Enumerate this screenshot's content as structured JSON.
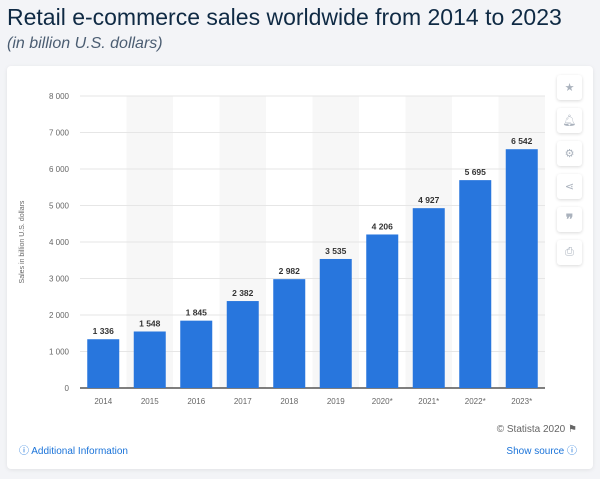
{
  "header": {
    "title": "Retail e-commerce sales worldwide from 2014 to 2023",
    "subtitle": "(in billion U.S. dollars)"
  },
  "footer": {
    "credit": "© Statista 2020",
    "additional_info": "Additional Information",
    "show_source": "Show source"
  },
  "sidebar_icons": [
    "star-icon",
    "bell-icon",
    "gear-icon",
    "share-icon",
    "quote-icon",
    "print-icon"
  ],
  "colors": {
    "bar": "#2876dd",
    "band": "#f7f7f7",
    "link": "#1a73d9"
  },
  "chart_data": {
    "type": "bar",
    "categories": [
      "2014",
      "2015",
      "2016",
      "2017",
      "2018",
      "2019",
      "2020*",
      "2021*",
      "2022*",
      "2023*"
    ],
    "values": [
      1336,
      1548,
      1845,
      2382,
      2982,
      3535,
      4206,
      4927,
      5695,
      6542
    ],
    "value_labels": [
      "1 336",
      "1 548",
      "1 845",
      "2 382",
      "2 982",
      "3 535",
      "4 206",
      "4 927",
      "5 695",
      "6 542"
    ],
    "ylabel": "Sales in billion U.S. dollars",
    "ylim": [
      0,
      8000
    ],
    "yticks": [
      0,
      1000,
      2000,
      3000,
      4000,
      5000,
      6000,
      7000,
      8000
    ],
    "ytick_labels": [
      "0",
      "1 000",
      "2 000",
      "3 000",
      "4 000",
      "5 000",
      "6 000",
      "7 000",
      "8 000"
    ],
    "grid": true
  }
}
